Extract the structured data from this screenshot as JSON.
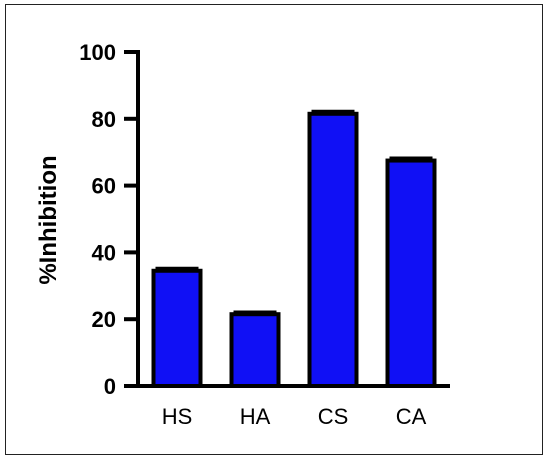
{
  "chart_data": {
    "type": "bar",
    "title": "",
    "xlabel": "",
    "ylabel": "%Inhibition",
    "categories": [
      "HS",
      "HA",
      "CS",
      "CA"
    ],
    "values": [
      34.5,
      21.5,
      81.5,
      67.5
    ],
    "error": [
      0.6,
      0.5,
      0.6,
      0.6
    ],
    "ylim": [
      0,
      100
    ],
    "yticks": [
      0,
      20,
      40,
      60,
      80,
      100
    ],
    "ytick_labels": [
      "0",
      "20",
      "40",
      "60",
      "80",
      "100"
    ],
    "grid": false,
    "bar_color": "#1010f5",
    "edge_color": "#000000"
  }
}
